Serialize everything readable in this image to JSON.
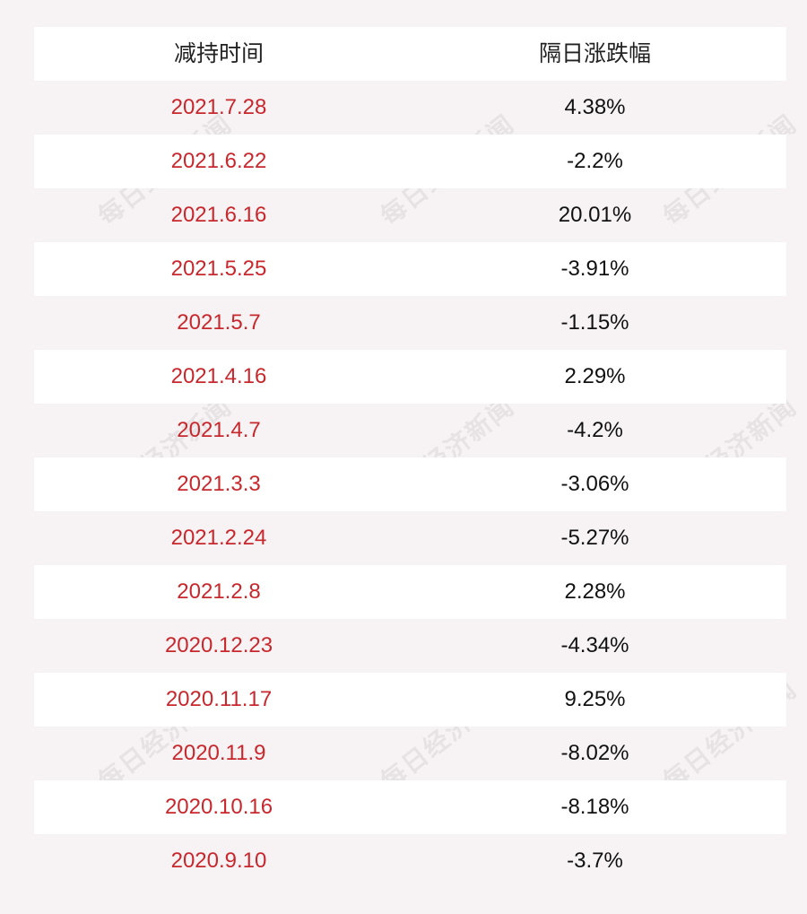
{
  "header": {
    "col1": "减持时间",
    "col2": "隔日涨跌幅"
  },
  "rows": [
    {
      "date": "2021.7.28",
      "change": "4.38%"
    },
    {
      "date": "2021.6.22",
      "change": "-2.2%"
    },
    {
      "date": "2021.6.16",
      "change": "20.01%"
    },
    {
      "date": "2021.5.25",
      "change": "-3.91%"
    },
    {
      "date": "2021.5.7",
      "change": "-1.15%"
    },
    {
      "date": "2021.4.16",
      "change": "2.29%"
    },
    {
      "date": "2021.4.7",
      "change": "-4.2%"
    },
    {
      "date": "2021.3.3",
      "change": "-3.06%"
    },
    {
      "date": "2021.2.24",
      "change": "-5.27%"
    },
    {
      "date": "2021.2.8",
      "change": "2.28%"
    },
    {
      "date": "2020.12.23",
      "change": "-4.34%"
    },
    {
      "date": "2020.11.17",
      "change": "9.25%"
    },
    {
      "date": "2020.11.9",
      "change": "-8.02%"
    },
    {
      "date": "2020.10.16",
      "change": "-8.18%"
    },
    {
      "date": "2020.9.10",
      "change": "-3.7%"
    }
  ],
  "watermark": "每日经济新闻",
  "colors": {
    "date_text": "#c8282d",
    "value_text": "#111111",
    "page_bg": "#f7f2f3",
    "row_bg": "#ffffff"
  }
}
